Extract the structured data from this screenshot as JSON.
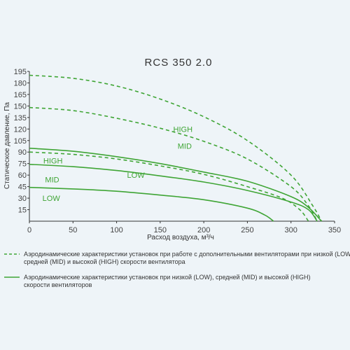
{
  "chart_data": {
    "type": "line",
    "title": "RCS 350 2.0",
    "xlabel": "Расход воздуха, м³/ч",
    "ylabel": "Статическое давление, Па",
    "xlim": [
      0,
      350
    ],
    "ylim": [
      0,
      195
    ],
    "xticks": [
      0,
      50,
      100,
      150,
      200,
      250,
      300,
      350
    ],
    "yticks": [
      15,
      30,
      45,
      60,
      75,
      90,
      105,
      120,
      135,
      150,
      165,
      180,
      195
    ],
    "grid": false,
    "colors": {
      "series": "#3fa535",
      "axis": "#333333"
    },
    "series": [
      {
        "name": "HIGH",
        "style": "dashed",
        "label_at": [
          165,
          120
        ],
        "x": [
          0,
          50,
          100,
          150,
          200,
          250,
          300,
          325,
          335
        ],
        "y": [
          190,
          186,
          176,
          159,
          136,
          105,
          60,
          20,
          0
        ]
      },
      {
        "name": "MID",
        "style": "dashed",
        "label_at": [
          170,
          98
        ],
        "x": [
          0,
          50,
          100,
          150,
          200,
          250,
          300,
          320,
          330
        ],
        "y": [
          148,
          144,
          134,
          121,
          104,
          81,
          45,
          20,
          0
        ]
      },
      {
        "name": "LOW",
        "style": "dashed",
        "label_at": [
          112,
          60
        ],
        "x": [
          0,
          50,
          100,
          150,
          200,
          250,
          290,
          310,
          320
        ],
        "y": [
          90,
          87,
          81,
          72,
          61,
          45,
          30,
          15,
          0
        ]
      },
      {
        "name": "HIGH",
        "style": "solid",
        "label_at": [
          16,
          79
        ],
        "x": [
          0,
          50,
          100,
          150,
          200,
          250,
          300,
          320,
          335
        ],
        "y": [
          95,
          91,
          84,
          75,
          64,
          52,
          32,
          18,
          0
        ]
      },
      {
        "name": "MID",
        "style": "solid",
        "label_at": [
          18,
          54
        ],
        "x": [
          0,
          50,
          100,
          150,
          200,
          250,
          300,
          320,
          330
        ],
        "y": [
          74,
          71,
          66,
          59,
          51,
          40,
          25,
          15,
          0
        ]
      },
      {
        "name": "LOW",
        "style": "solid",
        "label_at": [
          15,
          30
        ],
        "x": [
          0,
          50,
          100,
          150,
          200,
          250,
          270,
          280
        ],
        "y": [
          44,
          42,
          39,
          34,
          28,
          17,
          8,
          0
        ]
      }
    ],
    "legend": [
      {
        "style": "dashed",
        "text_lines": [
          "Аэродинамические характеристики установок при работе с дополнительными вентиляторами при низкой (LOW),",
          "средней (MID) и высокой (HIGH) скорости вентилятора"
        ]
      },
      {
        "style": "solid",
        "text_lines": [
          "Аэродинамические характеристики установок при низкой (LOW), средней (MID) и высокой (HIGH)",
          "скорости вентиляторов"
        ]
      }
    ]
  }
}
